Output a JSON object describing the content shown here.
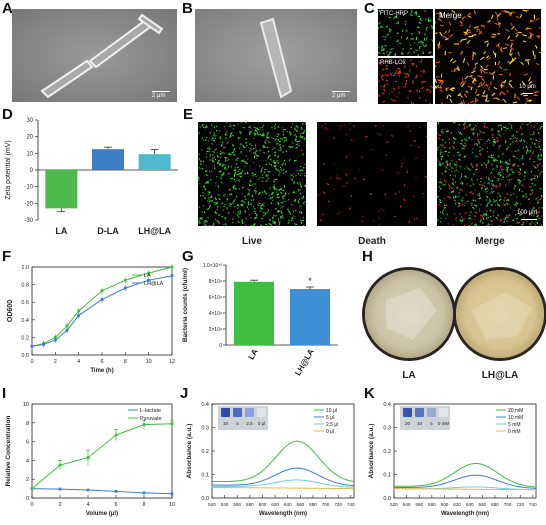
{
  "panels": {
    "A": {
      "label": "A",
      "scale": "2 μm"
    },
    "B": {
      "label": "B",
      "scale": "2 μm"
    },
    "C": {
      "label": "C",
      "top_label": "FITC-HRP",
      "bottom_label": "RHB-LOx",
      "merge_label": "Merge",
      "scale": "10 μm"
    },
    "D": {
      "label": "D"
    },
    "E": {
      "label": "E",
      "scale": "100 μm",
      "captions": [
        "Live",
        "Death",
        "Merge"
      ]
    },
    "F": {
      "label": "F"
    },
    "G": {
      "label": "G"
    },
    "H": {
      "label": "H",
      "captions": [
        "LA",
        "LH@LA"
      ]
    },
    "I": {
      "label": "I"
    },
    "J": {
      "label": "J",
      "vials": [
        "10",
        "5",
        "2.5",
        "0 μl"
      ]
    },
    "K": {
      "label": "K",
      "vials": [
        "20",
        "10",
        "5",
        "0 mM"
      ]
    }
  },
  "chart_data": [
    {
      "id": "D",
      "type": "bar",
      "ylabel": "Zeta potential (mV)",
      "categories": [
        "LA",
        "D-LA",
        "LH@LA"
      ],
      "values": [
        -23,
        12.5,
        9.5
      ],
      "errors": [
        2,
        1.2,
        2.8
      ],
      "colors": [
        "#4db84d",
        "#3d7fc4",
        "#4fb8cc"
      ],
      "ylim": [
        -30,
        30
      ],
      "yticks": [
        "30",
        "20",
        "10",
        "0",
        "-10",
        "-20",
        "-30"
      ]
    },
    {
      "id": "F",
      "type": "line",
      "xlabel": "Time (h)",
      "ylabel": "OD600",
      "x": [
        0,
        1,
        2,
        3,
        4,
        6,
        8,
        10,
        12
      ],
      "xticks": [
        "0",
        "2",
        "4",
        "6",
        "8",
        "10",
        "12"
      ],
      "yticks": [
        "0.0",
        "0.2",
        "0.4",
        "0.6",
        "0.8",
        "1.0"
      ],
      "ylim": [
        0,
        1.0
      ],
      "xlim": [
        0,
        12
      ],
      "series": [
        {
          "name": "LA",
          "color": "#3fbf3f",
          "values": [
            0.1,
            0.13,
            0.2,
            0.33,
            0.5,
            0.73,
            0.85,
            0.93,
            1.0
          ]
        },
        {
          "name": "LH@LA",
          "color": "#3d7fd0",
          "values": [
            0.1,
            0.12,
            0.17,
            0.28,
            0.45,
            0.63,
            0.76,
            0.85,
            0.9
          ]
        }
      ]
    },
    {
      "id": "G",
      "type": "bar",
      "ylabel": "Bacteria counts (cfu/ml)",
      "categories": [
        "LA",
        "LH@LA"
      ],
      "values": [
        7.9,
        7.0
      ],
      "errors": [
        0.2,
        0.25
      ],
      "colors": [
        "#3fbf3f",
        "#3d8fd6"
      ],
      "ylim": [
        0,
        10
      ],
      "yticks": [
        "0",
        "2×10⁹",
        "4×10⁹",
        "6×10⁹",
        "8×10⁹",
        "1.0×10¹⁰"
      ],
      "annotation": "*"
    },
    {
      "id": "I",
      "type": "line",
      "xlabel": "Volume (μl)",
      "ylabel": "Relative Concentration",
      "x": [
        0,
        2,
        4,
        6,
        8,
        10
      ],
      "xticks": [
        "0",
        "2",
        "4",
        "6",
        "8",
        "10"
      ],
      "yticks": [
        "0",
        "2",
        "4",
        "6",
        "8",
        "10"
      ],
      "ylim": [
        0,
        10
      ],
      "xlim": [
        0,
        10
      ],
      "series": [
        {
          "name": "L-lactate",
          "color": "#3d7fd0",
          "values": [
            1,
            0.95,
            0.85,
            0.7,
            0.55,
            0.45
          ]
        },
        {
          "name": "Pyruvate",
          "color": "#3fbf3f",
          "values": [
            1,
            3.5,
            4.3,
            6.7,
            7.8,
            7.9
          ],
          "errors": [
            0,
            0.5,
            0.8,
            0.6,
            0.5,
            0.3
          ],
          "x": [
            0,
            2,
            4,
            6,
            8,
            10
          ]
        }
      ]
    },
    {
      "id": "J",
      "type": "line",
      "xlabel": "Wavelength (nm)",
      "ylabel": "Absorbance (a.u.)",
      "xticks": [
        "520",
        "540",
        "560",
        "580",
        "600",
        "620",
        "640",
        "660",
        "680",
        "700",
        "720",
        "740"
      ],
      "yticks": [
        "0.0",
        "0.1",
        "0.2",
        "0.3",
        "0.4"
      ],
      "ylim": [
        0,
        0.4
      ],
      "xlim": [
        520,
        745
      ],
      "peak": 655,
      "series": [
        {
          "name": "10 μl",
          "color": "#3fbf3f",
          "base": 0.07,
          "amp": 0.175
        },
        {
          "name": "5 μl",
          "color": "#3d7fd0",
          "base": 0.055,
          "amp": 0.075
        },
        {
          "name": "2.5 μl",
          "color": "#6ccfe0",
          "base": 0.05,
          "amp": 0.03
        },
        {
          "name": "0 μl",
          "color": "#e8b84a",
          "base": 0.045,
          "amp": 0.0
        }
      ]
    },
    {
      "id": "K",
      "type": "line",
      "xlabel": "Wavelength (nm)",
      "ylabel": "Absorbance (a.u.)",
      "xticks": [
        "520",
        "540",
        "560",
        "580",
        "600",
        "620",
        "640",
        "660",
        "680",
        "700",
        "720",
        "740"
      ],
      "yticks": [
        "0.0",
        "0.1",
        "0.2",
        "0.3",
        "0.4"
      ],
      "ylim": [
        0,
        0.4
      ],
      "xlim": [
        520,
        745
      ],
      "peak": 650,
      "series": [
        {
          "name": "20 mM",
          "color": "#3fbf3f",
          "base": 0.05,
          "amp": 0.1
        },
        {
          "name": "10 mM",
          "color": "#3d7fd0",
          "base": 0.045,
          "amp": 0.055
        },
        {
          "name": "5 mM",
          "color": "#6ccfe0",
          "base": 0.04,
          "amp": 0.01
        },
        {
          "name": "0 mM",
          "color": "#e8b84a",
          "base": 0.04,
          "amp": 0.0
        }
      ]
    }
  ]
}
